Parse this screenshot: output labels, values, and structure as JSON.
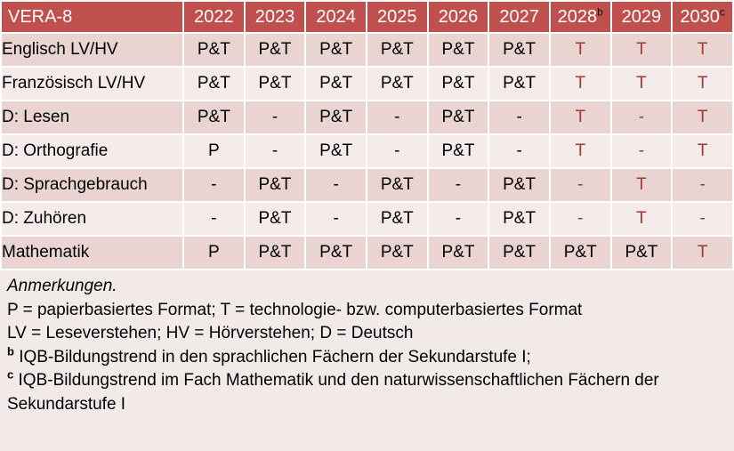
{
  "colors": {
    "header_bg": "#C0504D",
    "header_text": "#FFFFFF",
    "row_dark": "#EAD4D2",
    "row_light": "#F5EBEA",
    "page_bg": "#F2EAE8",
    "accent_red": "#9E3A33",
    "text": "#000000"
  },
  "table": {
    "title": "VERA-8",
    "columns": [
      {
        "label": "2022",
        "sup": ""
      },
      {
        "label": "2023",
        "sup": ""
      },
      {
        "label": "2024",
        "sup": ""
      },
      {
        "label": "2025",
        "sup": ""
      },
      {
        "label": "2026",
        "sup": ""
      },
      {
        "label": "2027",
        "sup": ""
      },
      {
        "label": "2028",
        "sup": "b"
      },
      {
        "label": "2029",
        "sup": ""
      },
      {
        "label": "2030",
        "sup": "c"
      }
    ],
    "rows": [
      {
        "label": "Englisch LV/HV",
        "shade": "dark",
        "cells": [
          {
            "v": "P&T",
            "red": false
          },
          {
            "v": "P&T",
            "red": false
          },
          {
            "v": "P&T",
            "red": false
          },
          {
            "v": "P&T",
            "red": false
          },
          {
            "v": "P&T",
            "red": false
          },
          {
            "v": "P&T",
            "red": false
          },
          {
            "v": "T",
            "red": true
          },
          {
            "v": "T",
            "red": true
          },
          {
            "v": "T",
            "red": true
          }
        ]
      },
      {
        "label": "Französisch LV/HV",
        "shade": "light",
        "cells": [
          {
            "v": "P&T",
            "red": false
          },
          {
            "v": "P&T",
            "red": false
          },
          {
            "v": "P&T",
            "red": false
          },
          {
            "v": "P&T",
            "red": false
          },
          {
            "v": "P&T",
            "red": false
          },
          {
            "v": "P&T",
            "red": false
          },
          {
            "v": "T",
            "red": true
          },
          {
            "v": "T",
            "red": true
          },
          {
            "v": "T",
            "red": true
          }
        ]
      },
      {
        "label": "D: Lesen",
        "shade": "dark",
        "cells": [
          {
            "v": "P&T",
            "red": false
          },
          {
            "v": "-",
            "red": false
          },
          {
            "v": "P&T",
            "red": false
          },
          {
            "v": "-",
            "red": false
          },
          {
            "v": "P&T",
            "red": false
          },
          {
            "v": "-",
            "red": false
          },
          {
            "v": "T",
            "red": true
          },
          {
            "v": "-",
            "red": true
          },
          {
            "v": "T",
            "red": true
          }
        ]
      },
      {
        "label": "D: Orthografie",
        "shade": "light",
        "cells": [
          {
            "v": "P",
            "red": false
          },
          {
            "v": "-",
            "red": false
          },
          {
            "v": "P&T",
            "red": false
          },
          {
            "v": "-",
            "red": false
          },
          {
            "v": "P&T",
            "red": false
          },
          {
            "v": "-",
            "red": false
          },
          {
            "v": "T",
            "red": true
          },
          {
            "v": "-",
            "red": true
          },
          {
            "v": "T",
            "red": true
          }
        ]
      },
      {
        "label": "D: Sprachgebrauch",
        "shade": "dark",
        "cells": [
          {
            "v": "-",
            "red": false
          },
          {
            "v": "P&T",
            "red": false
          },
          {
            "v": "-",
            "red": false
          },
          {
            "v": "P&T",
            "red": false
          },
          {
            "v": "-",
            "red": false
          },
          {
            "v": "P&T",
            "red": false
          },
          {
            "v": "-",
            "red": true
          },
          {
            "v": "T",
            "red": true
          },
          {
            "v": "-",
            "red": true
          }
        ]
      },
      {
        "label": "D: Zuhören",
        "shade": "light",
        "cells": [
          {
            "v": "-",
            "red": false
          },
          {
            "v": "P&T",
            "red": false
          },
          {
            "v": "-",
            "red": false
          },
          {
            "v": "P&T",
            "red": false
          },
          {
            "v": "-",
            "red": false
          },
          {
            "v": "P&T",
            "red": false
          },
          {
            "v": "-",
            "red": true
          },
          {
            "v": "T",
            "red": true
          },
          {
            "v": "-",
            "red": true
          }
        ]
      },
      {
        "label": "Mathematik",
        "shade": "dark",
        "cells": [
          {
            "v": "P",
            "red": false
          },
          {
            "v": "P&T",
            "red": false
          },
          {
            "v": "P&T",
            "red": false
          },
          {
            "v": "P&T",
            "red": false
          },
          {
            "v": "P&T",
            "red": false
          },
          {
            "v": "P&T",
            "red": false
          },
          {
            "v": "P&T",
            "red": false
          },
          {
            "v": "P&T",
            "red": false
          },
          {
            "v": "T",
            "red": true
          }
        ]
      }
    ]
  },
  "notes": {
    "heading": "Anmerkungen.",
    "formats": "P = papierbasiertes Format; T = technologie- bzw. computerbasiertes Format",
    "abbreviations": "LV = Leseverstehen; HV = Hörverstehen; D = Deutsch",
    "footnote_b": {
      "sup": "b",
      "text": "IQB-Bildungstrend in den sprachlichen Fächern der Sekundarstufe I;"
    },
    "footnote_c": {
      "sup": "c",
      "text": "IQB-Bildungstrend im Fach Mathematik und den naturwissenschaftlichen Fächern der Sekundarstufe I"
    }
  }
}
